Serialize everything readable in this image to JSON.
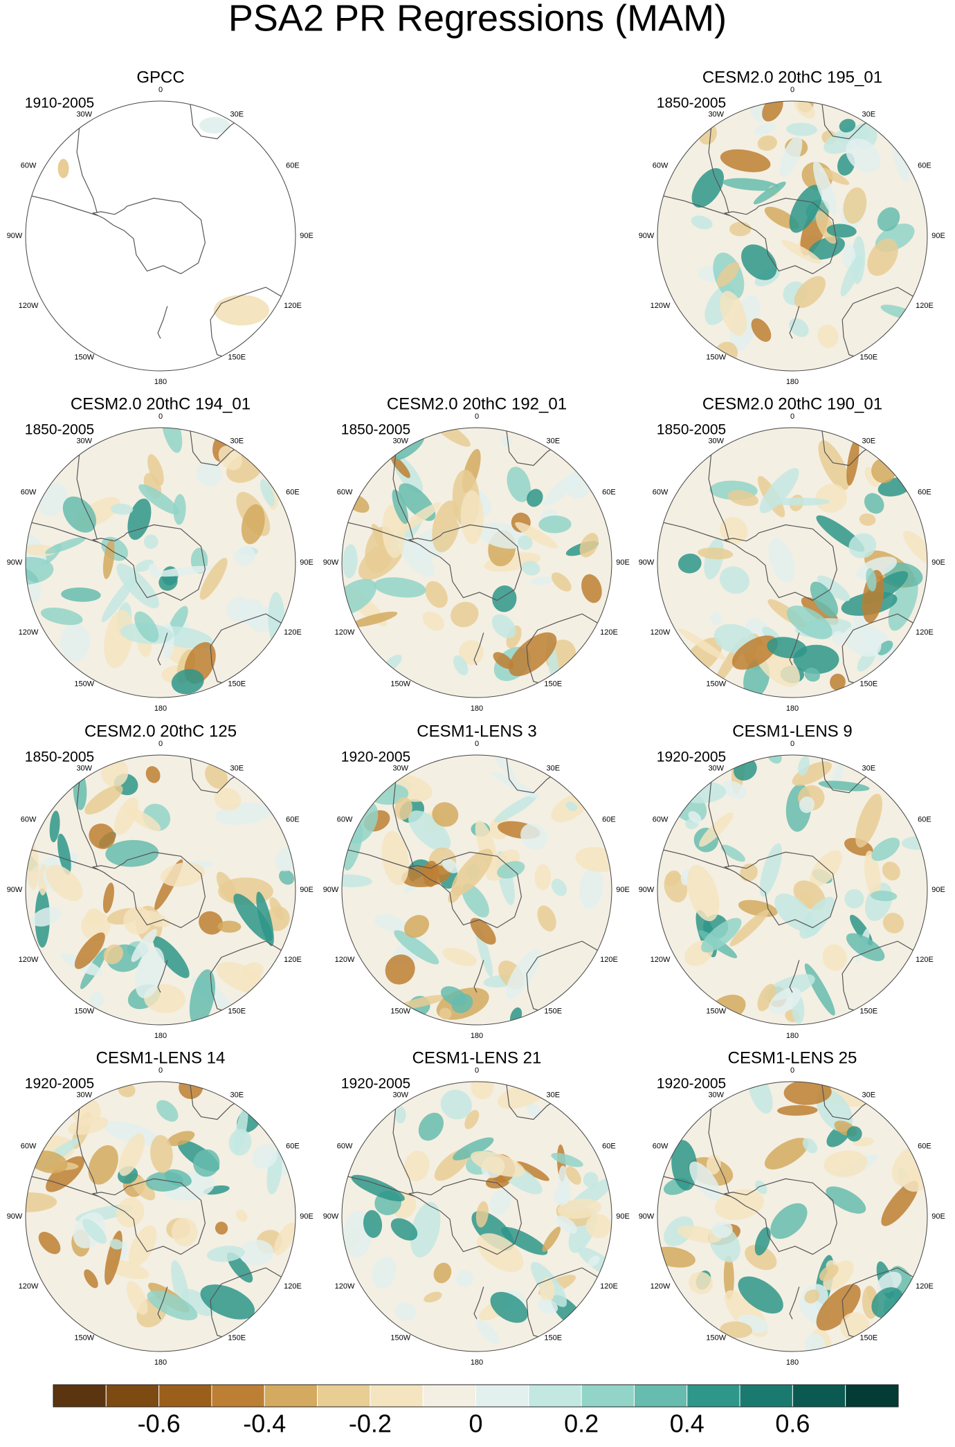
{
  "title": "PSA2 PR Regressions (MAM)",
  "panels": [
    {
      "title": "GPCC",
      "period": "1910-2005"
    },
    {
      "title": "CESM2.0 20thC 195_01",
      "period": "1850-2005"
    },
    {
      "title": "CESM2.0 20thC 194_01",
      "period": "1850-2005"
    },
    {
      "title": "CESM2.0 20thC 192_01",
      "period": "1850-2005"
    },
    {
      "title": "CESM2.0 20thC 190_01",
      "period": "1850-2005"
    },
    {
      "title": "CESM2.0 20thC 125",
      "period": "1850-2005"
    },
    {
      "title": "CESM1-LENS 3",
      "period": "1920-2005"
    },
    {
      "title": "CESM1-LENS 9",
      "period": "1920-2005"
    },
    {
      "title": "CESM1-LENS 14",
      "period": "1920-2005"
    },
    {
      "title": "CESM1-LENS 21",
      "period": "1920-2005"
    },
    {
      "title": "CESM1-LENS 25",
      "period": "1920-2005"
    }
  ],
  "lon_labels": [
    "0",
    "30E",
    "60E",
    "90E",
    "120E",
    "150E",
    "180",
    "150W",
    "120W",
    "90W",
    "60W",
    "30W"
  ],
  "colorbar": {
    "range": [
      -0.8,
      0.8
    ],
    "colors": [
      "#5b3510",
      "#7d4a12",
      "#9b5f1c",
      "#bd7f33",
      "#d3aa5f",
      "#e8cd94",
      "#f4e4bf",
      "#f4efe3",
      "#e2f0ee",
      "#c3e8e2",
      "#92d4c8",
      "#66bcae",
      "#2e978a",
      "#1a7a70",
      "#0b5a52",
      "#043b34"
    ],
    "ticks": [
      {
        "value": -0.6,
        "label": "-0.6"
      },
      {
        "value": -0.4,
        "label": "-0.4"
      },
      {
        "value": -0.2,
        "label": "-0.2"
      },
      0,
      {
        "value": 0.2,
        "label": "0.2"
      },
      {
        "value": 0.4,
        "label": "0.4"
      },
      {
        "value": 0.6,
        "label": "0.6"
      }
    ]
  }
}
